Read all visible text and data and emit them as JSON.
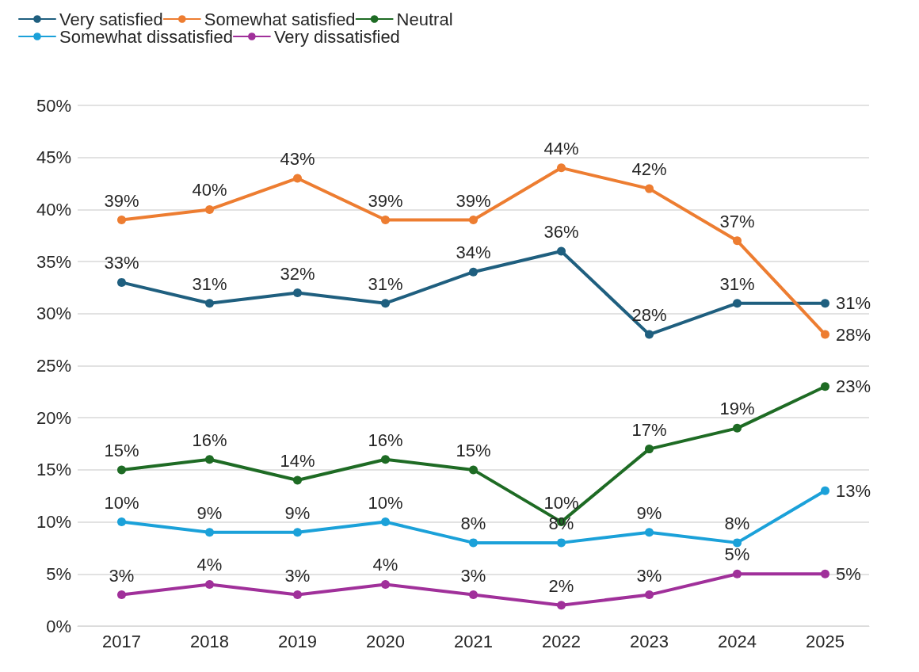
{
  "chart_data": {
    "type": "line",
    "categories": [
      "2017",
      "2018",
      "2019",
      "2020",
      "2021",
      "2022",
      "2023",
      "2024",
      "2025"
    ],
    "series": [
      {
        "name": "Very satisfied",
        "color": "#1f5f7f",
        "values": [
          33,
          31,
          32,
          31,
          34,
          36,
          28,
          31,
          31
        ],
        "value_labels": [
          "33%",
          "31%",
          "32%",
          "31%",
          "34%",
          "36%",
          "28%",
          "31%",
          "31%"
        ]
      },
      {
        "name": "Somewhat satisfied",
        "color": "#ed7d31",
        "values": [
          39,
          40,
          43,
          39,
          39,
          44,
          42,
          37,
          28
        ],
        "value_labels": [
          "39%",
          "40%",
          "43%",
          "39%",
          "39%",
          "44%",
          "42%",
          "37%",
          "28%"
        ]
      },
      {
        "name": "Neutral",
        "color": "#1e6b24",
        "values": [
          15,
          16,
          14,
          16,
          15,
          10,
          17,
          19,
          23
        ],
        "value_labels": [
          "15%",
          "16%",
          "14%",
          "16%",
          "15%",
          "10%",
          "17%",
          "19%",
          "23%"
        ]
      },
      {
        "name": "Somewhat dissatisfied",
        "color": "#1ba1d9",
        "values": [
          10,
          9,
          9,
          10,
          8,
          8,
          9,
          8,
          13
        ],
        "value_labels": [
          "10%",
          "9%",
          "9%",
          "10%",
          "8%",
          "8%",
          "9%",
          "8%",
          "13%"
        ]
      },
      {
        "name": "Very dissatisfied",
        "color": "#a0309a",
        "values": [
          3,
          4,
          3,
          4,
          3,
          2,
          3,
          5,
          5
        ],
        "value_labels": [
          "3%",
          "4%",
          "3%",
          "4%",
          "3%",
          "2%",
          "3%",
          "5%",
          "5%"
        ]
      }
    ],
    "ylim": [
      0,
      50
    ],
    "yticks": [
      {
        "value": 0,
        "label": "0%"
      },
      {
        "value": 5,
        "label": "5%"
      },
      {
        "value": 10,
        "label": "10%"
      },
      {
        "value": 15,
        "label": "15%"
      },
      {
        "value": 20,
        "label": "20%"
      },
      {
        "value": 25,
        "label": "25%"
      },
      {
        "value": 30,
        "label": "30%"
      },
      {
        "value": 35,
        "label": "35%"
      },
      {
        "value": 40,
        "label": "40%"
      },
      {
        "value": 45,
        "label": "45%"
      },
      {
        "value": 50,
        "label": "50%"
      }
    ],
    "grid": "y",
    "legend": "top left",
    "marker": "circle",
    "line_style": "solid"
  }
}
